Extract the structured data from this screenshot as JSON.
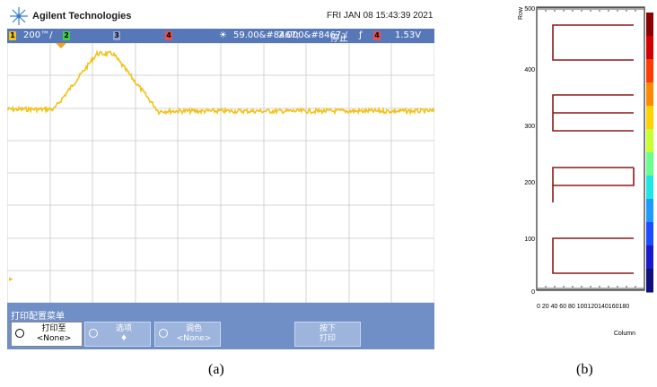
{
  "scope": {
    "brand": "Agilent Technologies",
    "timestamp": "FRI JAN 08 15:43:39 2021",
    "status": {
      "ch1_num": "1",
      "ch1_scale": "200™/",
      "ch2_num": "2",
      "ch3_num": "3",
      "ch4_num": "4",
      "time_offset": "59.00&#8467;",
      "time_scale": "2.000&#8467;/",
      "run_state": "停止",
      "trigger_ch": "4",
      "trigger_level": "1.53V"
    },
    "menu": {
      "title": "打印配置菜单",
      "buttons": [
        {
          "line1": "打印至",
          "line2": "<None>"
        },
        {
          "line1": "选项",
          "line2": "♦"
        },
        {
          "line1": "调色",
          "line2": "<None>"
        },
        {
          "line1": "按下",
          "line2": "打印"
        }
      ]
    }
  },
  "figure_b": {
    "row_label": "Row",
    "column_label": "Column",
    "y_ticks": [
      "500",
      "400",
      "300",
      "200",
      "100",
      "0"
    ],
    "x_ticks": "0  20 40 60 80 100120140160180"
  },
  "captions": {
    "a": "(a)",
    "b": "(b)"
  },
  "colors": {
    "trace": "#f2c21b",
    "status_bar": "#5778b8",
    "menu_bar": "#6f8fc6",
    "pattern": "#8b1a1a"
  }
}
